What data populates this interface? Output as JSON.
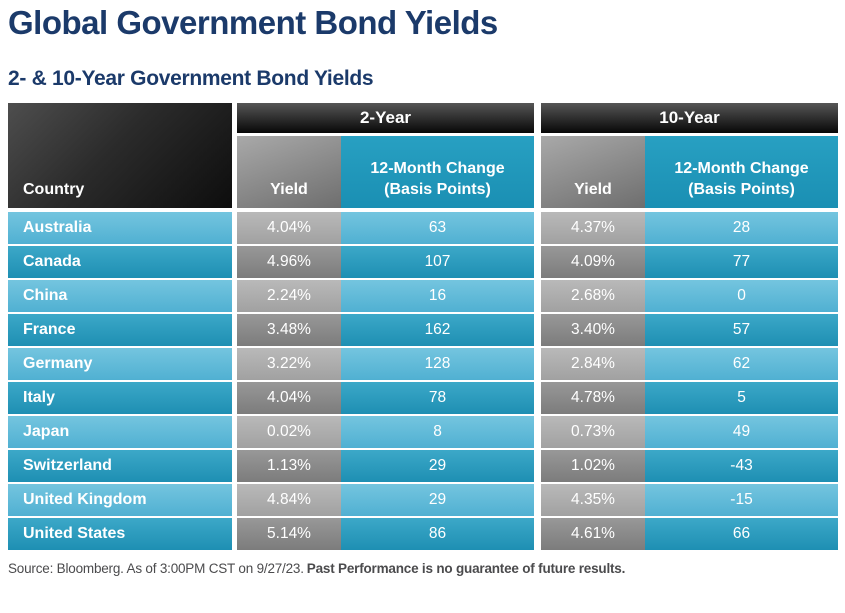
{
  "title": "Global Government Bond Yields",
  "subtitle": "2- & 10-Year Government Bond Yields",
  "table": {
    "country_header": "Country",
    "group_2yr": "2-Year",
    "group_10yr": "10-Year",
    "yield_header": "Yield",
    "change_header_line1": "12-Month Change",
    "change_header_line2": "(Basis Points)",
    "rows": [
      {
        "country": "Australia",
        "y2_yield": "4.04%",
        "y2_change": "63",
        "y10_yield": "4.37%",
        "y10_change": "28"
      },
      {
        "country": "Canada",
        "y2_yield": "4.96%",
        "y2_change": "107",
        "y10_yield": "4.09%",
        "y10_change": "77"
      },
      {
        "country": "China",
        "y2_yield": "2.24%",
        "y2_change": "16",
        "y10_yield": "2.68%",
        "y10_change": "0"
      },
      {
        "country": "France",
        "y2_yield": "3.48%",
        "y2_change": "162",
        "y10_yield": "3.40%",
        "y10_change": "57"
      },
      {
        "country": "Germany",
        "y2_yield": "3.22%",
        "y2_change": "128",
        "y10_yield": "2.84%",
        "y10_change": "62"
      },
      {
        "country": "Italy",
        "y2_yield": "4.04%",
        "y2_change": "78",
        "y10_yield": "4.78%",
        "y10_change": "5"
      },
      {
        "country": "Japan",
        "y2_yield": "0.02%",
        "y2_change": "8",
        "y10_yield": "0.73%",
        "y10_change": "49"
      },
      {
        "country": "Switzerland",
        "y2_yield": "1.13%",
        "y2_change": "29",
        "y10_yield": "1.02%",
        "y10_change": "-43"
      },
      {
        "country": "United Kingdom",
        "y2_yield": "4.84%",
        "y2_change": "29",
        "y10_yield": "4.35%",
        "y10_change": "-15"
      },
      {
        "country": "United States",
        "y2_yield": "5.14%",
        "y2_change": "86",
        "y10_yield": "4.61%",
        "y10_change": "66"
      }
    ]
  },
  "footer": {
    "source": "Source: Bloomberg. As of 3:00PM CST on 9/27/23.",
    "disclaimer": "Past Performance is no guarantee of future results."
  },
  "colors": {
    "title_navy": "#1b3a6a",
    "header_black": "#0d0d0d",
    "header_teal": "#1f98bb",
    "row_teal_light": "#5cbbd9",
    "row_teal_dark": "#2598bb",
    "row_gray_light": "#acacac",
    "row_gray_dark": "#8a8a8a",
    "footer_gray": "#4b4b4d"
  },
  "chart_data": {
    "type": "table",
    "title": "Global Government Bond Yields",
    "subtitle": "2- & 10-Year Government Bond Yields",
    "columns": [
      "Country",
      "2-Year Yield",
      "2-Year 12-Month Change (Basis Points)",
      "10-Year Yield",
      "10-Year 12-Month Change (Basis Points)"
    ],
    "rows": [
      [
        "Australia",
        "4.04%",
        63,
        "4.37%",
        28
      ],
      [
        "Canada",
        "4.96%",
        107,
        "4.09%",
        77
      ],
      [
        "China",
        "2.24%",
        16,
        "2.68%",
        0
      ],
      [
        "France",
        "3.48%",
        162,
        "3.40%",
        57
      ],
      [
        "Germany",
        "3.22%",
        128,
        "2.84%",
        62
      ],
      [
        "Italy",
        "4.04%",
        78,
        "4.78%",
        5
      ],
      [
        "Japan",
        "0.02%",
        8,
        "0.73%",
        49
      ],
      [
        "Switzerland",
        "1.13%",
        29,
        "1.02%",
        -43
      ],
      [
        "United Kingdom",
        "4.84%",
        29,
        "4.35%",
        -15
      ],
      [
        "United States",
        "5.14%",
        86,
        "4.61%",
        66
      ]
    ],
    "source": "Source: Bloomberg. As of 3:00PM CST on 9/27/23. Past Performance is no guarantee of future results."
  }
}
